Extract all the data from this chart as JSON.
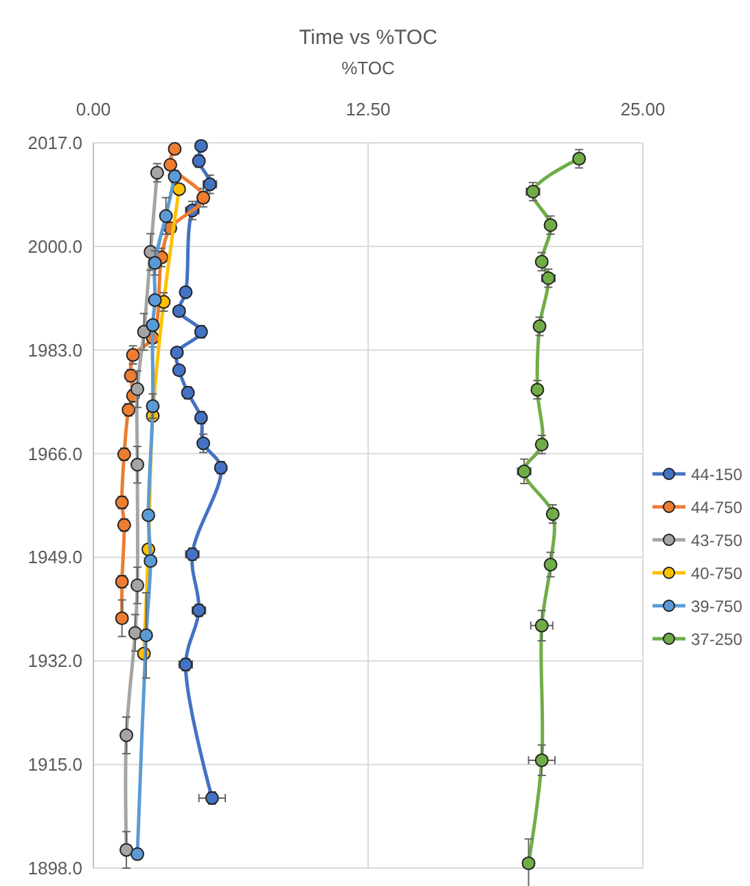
{
  "chart_data": {
    "type": "line",
    "title": "Time vs %TOC",
    "xlabel": "%TOC",
    "xlim": [
      0,
      25
    ],
    "xticks": [
      {
        "value": 0,
        "label": "0.00"
      },
      {
        "value": 12.5,
        "label": "12.50"
      },
      {
        "value": 25,
        "label": "25.00"
      }
    ],
    "ylim": [
      1898,
      2017
    ],
    "yticks": [
      {
        "value": 1898,
        "label": "1898.0"
      },
      {
        "value": 1915,
        "label": "1915.0"
      },
      {
        "value": 1932,
        "label": "1932.0"
      },
      {
        "value": 1949,
        "label": "1949.0"
      },
      {
        "value": 1966,
        "label": "1966.0"
      },
      {
        "value": 1983,
        "label": "1983.0"
      },
      {
        "value": 2000,
        "label": "2000.0"
      },
      {
        "value": 2017,
        "label": "2017.0"
      }
    ],
    "grid": true,
    "legend": "right",
    "marker": "circle",
    "line_style": "solid",
    "series": [
      {
        "name": "44-150",
        "color": "#4472c4",
        "x": [
          4.9,
          4.8,
          5.3,
          4.5,
          4.2,
          3.9,
          4.9,
          3.8,
          3.9,
          4.3,
          4.9,
          5.0,
          5.8,
          4.5,
          4.8,
          4.2,
          5.4
        ],
        "values": [
          2016.5,
          2014,
          2010.2,
          2005.9,
          1992.5,
          1989.4,
          1986,
          1982.6,
          1979.7,
          1976,
          1971.9,
          1967.7,
          1963.7,
          1949.5,
          1940.3,
          1931.4,
          1909.5
        ],
        "errors": [
          null,
          1,
          1.5,
          1.5,
          null,
          null,
          1,
          null,
          null,
          1,
          1,
          1.5,
          1,
          1,
          1,
          1,
          1
        ],
        "xerrors": [
          null,
          null,
          0.3,
          0.3,
          null,
          null,
          null,
          null,
          null,
          null,
          null,
          null,
          null,
          0.3,
          0.3,
          0.3,
          0.6
        ]
      },
      {
        "name": "44-750",
        "color": "#ed7d31",
        "x": [
          3.7,
          3.5,
          5.0,
          3.5,
          3.1,
          2.7,
          1.8,
          1.7,
          1.8,
          1.6,
          1.4,
          1.3,
          1.4,
          1.3,
          1.3
        ],
        "values": [
          2016,
          2013.4,
          2008,
          2003,
          1998.2,
          1985,
          1982.2,
          1978.8,
          1975.5,
          1973.2,
          1965.9,
          1958,
          1954.3,
          1945,
          1939
        ],
        "errors": [
          null,
          null,
          1.5,
          null,
          1.5,
          1.5,
          1.5,
          1,
          1,
          1,
          1,
          1,
          1,
          1,
          3
        ]
      },
      {
        "name": "43-750",
        "color": "#a5a5a5",
        "x": [
          2.9,
          2.6,
          2.3,
          2.0,
          2.0,
          2.0,
          1.9,
          1.5,
          1.5
        ],
        "values": [
          2012.1,
          1999.1,
          1986,
          1976.6,
          1964.2,
          1944.4,
          1936.6,
          1919.8,
          1901
        ],
        "errors": [
          1.5,
          3,
          3,
          3,
          3,
          3,
          3,
          3,
          3
        ]
      },
      {
        "name": "40-750",
        "color": "#ffc000",
        "x": [
          3.9,
          3.2,
          2.7,
          2.5,
          2.3
        ],
        "values": [
          2009.4,
          1990.9,
          1972.2,
          1950.3,
          1933.2
        ],
        "errors": [
          null,
          1.5,
          null,
          null,
          null
        ]
      },
      {
        "name": "39-750",
        "color": "#5b9bd5",
        "x": [
          3.7,
          3.3,
          2.8,
          2.8,
          2.7,
          2.7,
          2.5,
          2.6,
          2.4,
          2.0
        ],
        "values": [
          2011.5,
          2005,
          1997.3,
          1991.2,
          1987.1,
          1973.8,
          1955.9,
          1948.4,
          1936.2,
          1900.3
        ],
        "errors": [
          1,
          3,
          2,
          null,
          null,
          2,
          null,
          null,
          7,
          null
        ]
      },
      {
        "name": "37-250",
        "color": "#70ad47",
        "x": [
          22.1,
          20.0,
          20.8,
          20.4,
          20.7,
          20.3,
          20.2,
          20.4,
          19.6,
          20.9,
          20.8,
          20.4,
          20.4,
          19.8
        ],
        "values": [
          2014.4,
          2009,
          2003.5,
          1997.5,
          1994.8,
          1986.9,
          1976.5,
          1967.5,
          1963.1,
          1956.1,
          1947.8,
          1937.8,
          1915.7,
          1898.8
        ],
        "errors": [
          1.5,
          1.5,
          1.5,
          1.5,
          1.5,
          1.5,
          1.5,
          1.5,
          2,
          1.5,
          2,
          2.5,
          2.5,
          4
        ],
        "xerrors": [
          null,
          0.3,
          null,
          null,
          0.3,
          null,
          null,
          null,
          0.3,
          null,
          null,
          0.5,
          0.6,
          null
        ]
      }
    ]
  }
}
